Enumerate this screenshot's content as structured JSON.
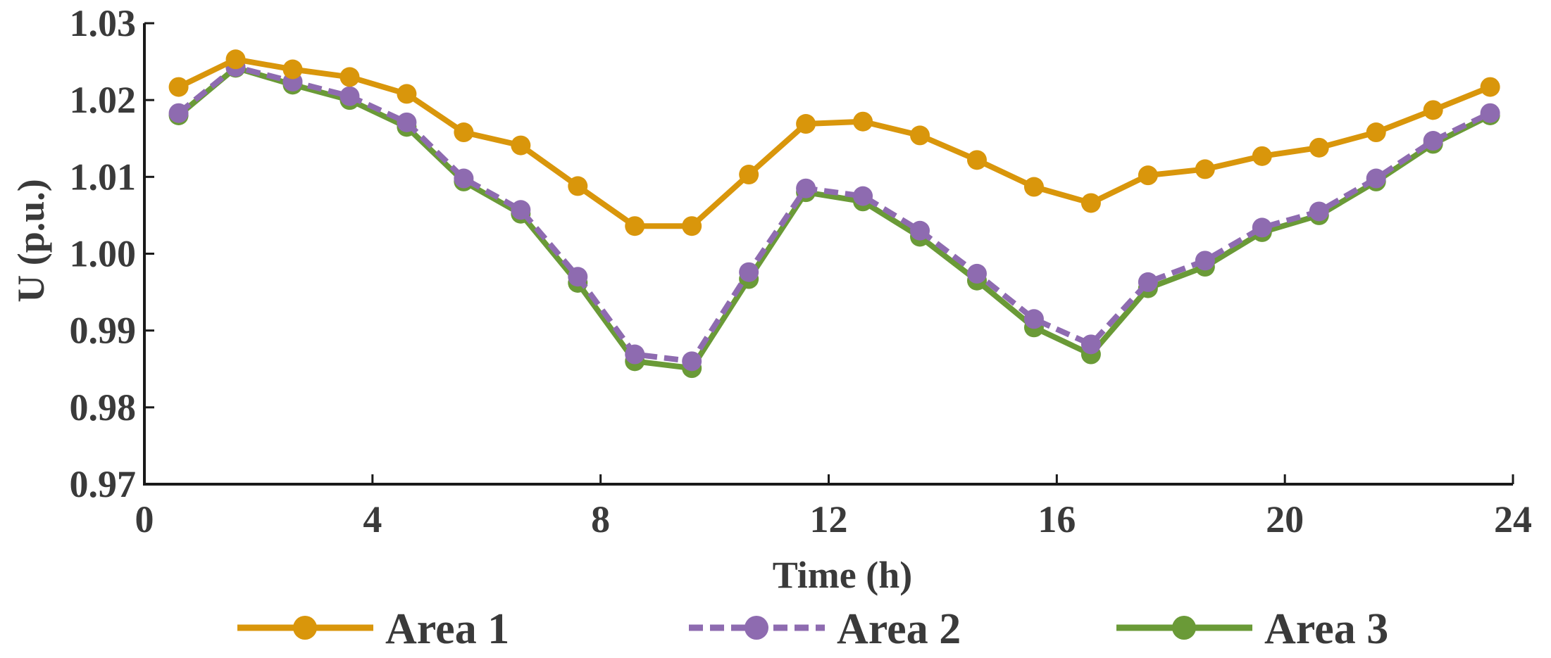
{
  "chart_data": {
    "type": "line",
    "title": "",
    "xlabel": "Time (h)",
    "ylabel": "U (p.u.)",
    "xlim": [
      0,
      24
    ],
    "ylim": [
      0.97,
      1.03
    ],
    "xticks": [
      0,
      4,
      8,
      12,
      16,
      20,
      24
    ],
    "xtick_labels": [
      "0",
      "4",
      "8",
      "12",
      "16",
      "20",
      "24"
    ],
    "yticks": [
      0.97,
      0.98,
      0.99,
      1.0,
      1.01,
      1.02,
      1.03
    ],
    "ytick_labels": [
      "0.97",
      "0.98",
      "0.99",
      "1.00",
      "1.01",
      "1.02",
      "1.03"
    ],
    "grid": false,
    "legend_position": "bottom",
    "x": [
      0.6,
      1.6,
      2.6,
      3.6,
      4.6,
      5.6,
      6.6,
      7.6,
      8.6,
      9.6,
      10.6,
      11.6,
      12.6,
      13.6,
      14.6,
      15.6,
      16.6,
      17.6,
      18.6,
      19.6,
      20.6,
      21.6,
      22.6,
      23.6
    ],
    "series": [
      {
        "name": "Area 1",
        "color": "#D9960B",
        "style": "solid",
        "values": [
          1.0217,
          1.0253,
          1.024,
          1.023,
          1.0208,
          1.0158,
          1.0141,
          1.0088,
          1.0036,
          1.0036,
          1.0103,
          1.0169,
          1.0172,
          1.0154,
          1.0122,
          1.0087,
          1.0066,
          1.0102,
          1.011,
          1.0127,
          1.0138,
          1.0158,
          1.0187,
          1.0217
        ]
      },
      {
        "name": "Area 2",
        "color": "#8E6BB0",
        "style": "dashed",
        "values": [
          1.0183,
          1.0243,
          1.0224,
          1.0205,
          1.0171,
          1.0098,
          1.0057,
          0.997,
          0.9869,
          0.986,
          0.9976,
          1.0085,
          1.0075,
          1.003,
          0.9974,
          0.9915,
          0.9882,
          0.9963,
          0.9991,
          1.0034,
          1.0055,
          1.0098,
          1.0147,
          1.0183
        ]
      },
      {
        "name": "Area 3",
        "color": "#6A9A37",
        "style": "solid",
        "values": [
          1.018,
          1.0242,
          1.022,
          1.02,
          1.0165,
          1.0094,
          1.0052,
          0.9962,
          0.986,
          0.9851,
          0.9967,
          1.008,
          1.0068,
          1.0022,
          0.9965,
          0.9904,
          0.9869,
          0.9955,
          0.9983,
          1.0028,
          1.005,
          1.0094,
          1.0143,
          1.018
        ]
      }
    ]
  }
}
